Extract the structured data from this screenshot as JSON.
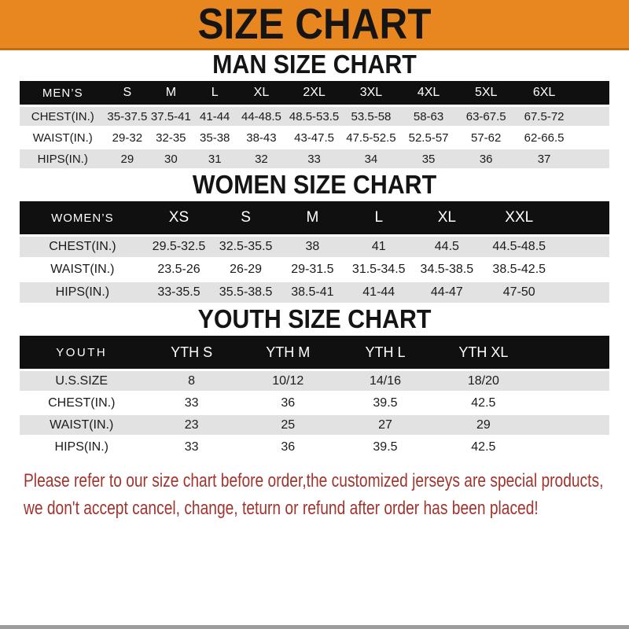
{
  "banner": {
    "title": "SIZE CHART",
    "bg_color": "#E8871F"
  },
  "tables": {
    "men": {
      "heading": "MAN SIZE CHART",
      "label": "MEN’S",
      "columns": [
        "S",
        "M",
        "L",
        "XL",
        "2XL",
        "3XL",
        "4XL",
        "5XL",
        "6XL"
      ],
      "rows": [
        {
          "label": "CHEST(IN.)",
          "values": [
            "35-37.5",
            "37.5-41",
            "41-44",
            "44-48.5",
            "48.5-53.5",
            "53.5-58",
            "58-63",
            "63-67.5",
            "67.5-72"
          ]
        },
        {
          "label": "WAIST(IN.)",
          "values": [
            "29-32",
            "32-35",
            "35-38",
            "38-43",
            "43-47.5",
            "47.5-52.5",
            "52.5-57",
            "57-62",
            "62-66.5"
          ]
        },
        {
          "label": "HIPS(IN.)",
          "values": [
            "29",
            "30",
            "31",
            "32",
            "33",
            "34",
            "35",
            "36",
            "37"
          ]
        }
      ]
    },
    "women": {
      "heading": "WOMEN SIZE CHART",
      "label": "WOMEN’S",
      "columns": [
        "XS",
        "S",
        "M",
        "L",
        "XL",
        "XXL"
      ],
      "rows": [
        {
          "label": "CHEST(IN.)",
          "values": [
            "29.5-32.5",
            "32.5-35.5",
            "38",
            "41",
            "44.5",
            "44.5-48.5"
          ]
        },
        {
          "label": "WAIST(IN.)",
          "values": [
            "23.5-26",
            "26-29",
            "29-31.5",
            "31.5-34.5",
            "34.5-38.5",
            "38.5-42.5"
          ]
        },
        {
          "label": "HIPS(IN.)",
          "values": [
            "33-35.5",
            "35.5-38.5",
            "38.5-41",
            "41-44",
            "44-47",
            "47-50"
          ]
        }
      ]
    },
    "youth": {
      "heading": "YOUTH SIZE CHART",
      "label": "YOUTH",
      "columns": [
        "YTH S",
        "YTH M",
        "YTH L",
        "YTH XL"
      ],
      "rows": [
        {
          "label": "U.S.SIZE",
          "values": [
            "8",
            "10/12",
            "14/16",
            "18/20"
          ]
        },
        {
          "label": "CHEST(IN.)",
          "values": [
            "33",
            "36",
            "39.5",
            "42.5"
          ]
        },
        {
          "label": "WAIST(IN.)",
          "values": [
            "23",
            "25",
            "27",
            "29"
          ]
        },
        {
          "label": "HIPS(IN.)",
          "values": [
            "33",
            "36",
            "39.5",
            "42.5"
          ]
        }
      ]
    }
  },
  "footer": {
    "line1": "Please refer to our size chart before order,the customized jerseys are special products,",
    "line2": "we don't accept cancel, change, teturn or refund after order has been placed!",
    "text_color": "#A2342E"
  }
}
